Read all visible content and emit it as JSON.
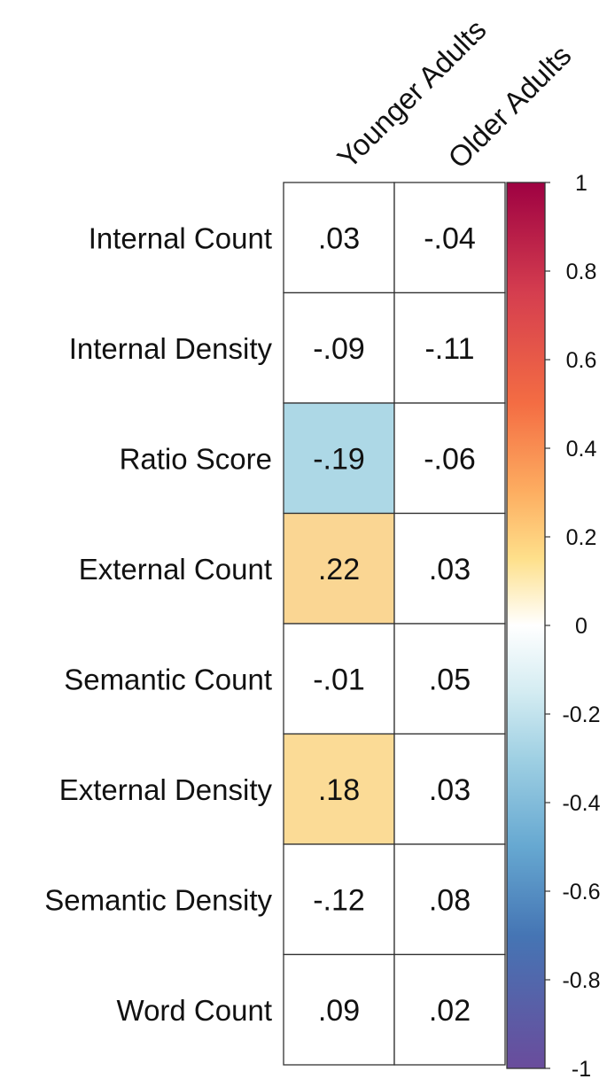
{
  "chart_data": {
    "type": "heatmap",
    "columns": [
      "Younger Adults",
      "Older Adults"
    ],
    "rows": [
      "Internal Count",
      "Internal Density",
      "Ratio Score",
      "External Count",
      "Semantic Count",
      "External Density",
      "Semantic Density",
      "Word Count"
    ],
    "values": [
      [
        0.03,
        -0.04
      ],
      [
        -0.09,
        -0.11
      ],
      [
        -0.19,
        -0.06
      ],
      [
        0.22,
        0.03
      ],
      [
        -0.01,
        0.05
      ],
      [
        0.18,
        0.03
      ],
      [
        -0.12,
        0.08
      ],
      [
        0.09,
        0.02
      ]
    ],
    "cell_labels": [
      [
        ".03",
        "-.04"
      ],
      [
        "-.09",
        "-.11"
      ],
      [
        "-.19",
        "-.06"
      ],
      [
        ".22",
        ".03"
      ],
      [
        "-.01",
        ".05"
      ],
      [
        ".18",
        ".03"
      ],
      [
        "-.12",
        ".08"
      ],
      [
        ".09",
        ".02"
      ]
    ],
    "highlighted_cells": [
      {
        "row": 2,
        "col": 0,
        "color": "#add8e6"
      },
      {
        "row": 3,
        "col": 0,
        "color": "#fad693"
      },
      {
        "row": 5,
        "col": 0,
        "color": "#fbdb96"
      }
    ],
    "colorbar": {
      "range": [
        -1,
        1
      ],
      "ticks": [
        "1",
        "0.8",
        "0.6",
        "0.4",
        "0.2",
        "0",
        "-0.2",
        "-0.4",
        "-0.6",
        "-0.8",
        "-1"
      ],
      "tick_values": [
        1,
        0.8,
        0.6,
        0.4,
        0.2,
        0,
        -0.2,
        -0.4,
        -0.6,
        -0.8,
        -1
      ],
      "color_stops": [
        {
          "value": 1,
          "color": "#9e0142"
        },
        {
          "value": 0.75,
          "color": "#d53e4f"
        },
        {
          "value": 0.5,
          "color": "#f46d43"
        },
        {
          "value": 0.3,
          "color": "#fdae61"
        },
        {
          "value": 0.15,
          "color": "#fee08b"
        },
        {
          "value": 0,
          "color": "#ffffff"
        },
        {
          "value": -0.15,
          "color": "#d4ecf2"
        },
        {
          "value": -0.3,
          "color": "#9fd0e3"
        },
        {
          "value": -0.5,
          "color": "#66a8d1"
        },
        {
          "value": -0.7,
          "color": "#4575b4"
        },
        {
          "value": -1,
          "color": "#6a4c9c"
        }
      ]
    }
  }
}
